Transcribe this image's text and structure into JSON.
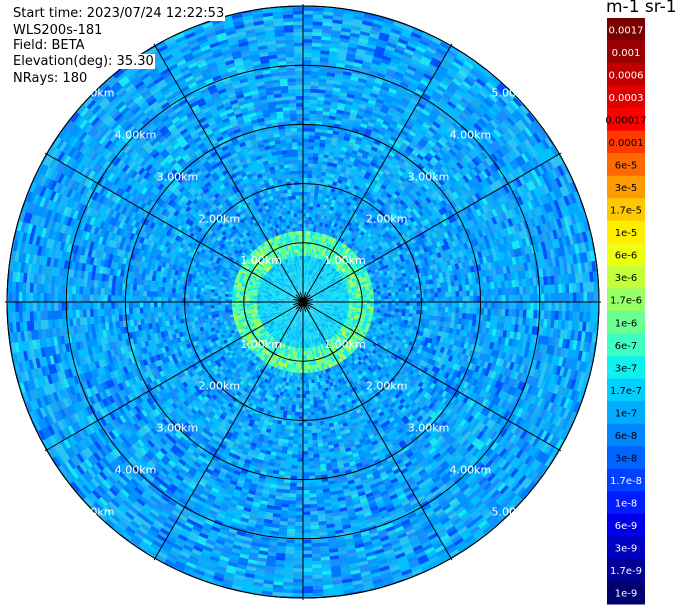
{
  "header": {
    "start_time": "Start time: 2023/07/24 12:22:53",
    "device": "WLS200s-181",
    "field": "Field: BETA",
    "elevation": "Elevation(deg): 35.30",
    "nrays": "NRays: 180"
  },
  "colorbar": {
    "unit": "m-1 sr-1",
    "ticks": [
      "0.0017",
      "0.001",
      "0.0006",
      "0.0003",
      "0.00017",
      "0.0001",
      "6e-5",
      "3e-5",
      "1.7e-5",
      "1e-5",
      "6e-6",
      "3e-6",
      "1.7e-6",
      "1e-6",
      "6e-7",
      "3e-7",
      "1.7e-7",
      "1e-7",
      "6e-8",
      "3e-8",
      "1.7e-8",
      "1e-8",
      "6e-9",
      "3e-9",
      "1.7e-9",
      "1e-9"
    ],
    "colors": [
      "#7a0000",
      "#9a0000",
      "#c00000",
      "#e00000",
      "#ff0000",
      "#ff3a00",
      "#ff6a00",
      "#ff9a00",
      "#ffc800",
      "#ffee00",
      "#eeff11",
      "#c4ff3b",
      "#97ff68",
      "#6bff94",
      "#3dffc1",
      "#10f0ee",
      "#00cfff",
      "#00acff",
      "#0088ff",
      "#0064ff",
      "#0040ff",
      "#001cff",
      "#0000e8",
      "#0000c0",
      "#000096",
      "#00006e"
    ]
  },
  "chart_data": {
    "type": "heatmap",
    "projection": "polar (PPI scan)",
    "field": "BETA",
    "rays": 180,
    "range_rings_km": [
      1,
      2,
      3,
      4,
      5
    ],
    "range_ring_labels": [
      "1.00km",
      "2.00km",
      "3.00km",
      "4.00km",
      "5.00km"
    ],
    "spokes_deg": [
      0,
      30,
      60,
      90,
      120,
      150,
      180,
      210,
      240,
      270,
      300,
      330
    ],
    "background_level": "3e-7 to 6e-8 (cyan/blue)",
    "enhanced_ring": {
      "range_km": 1.0,
      "level": "1e-6 to 6e-6 (green/yellow)"
    }
  }
}
